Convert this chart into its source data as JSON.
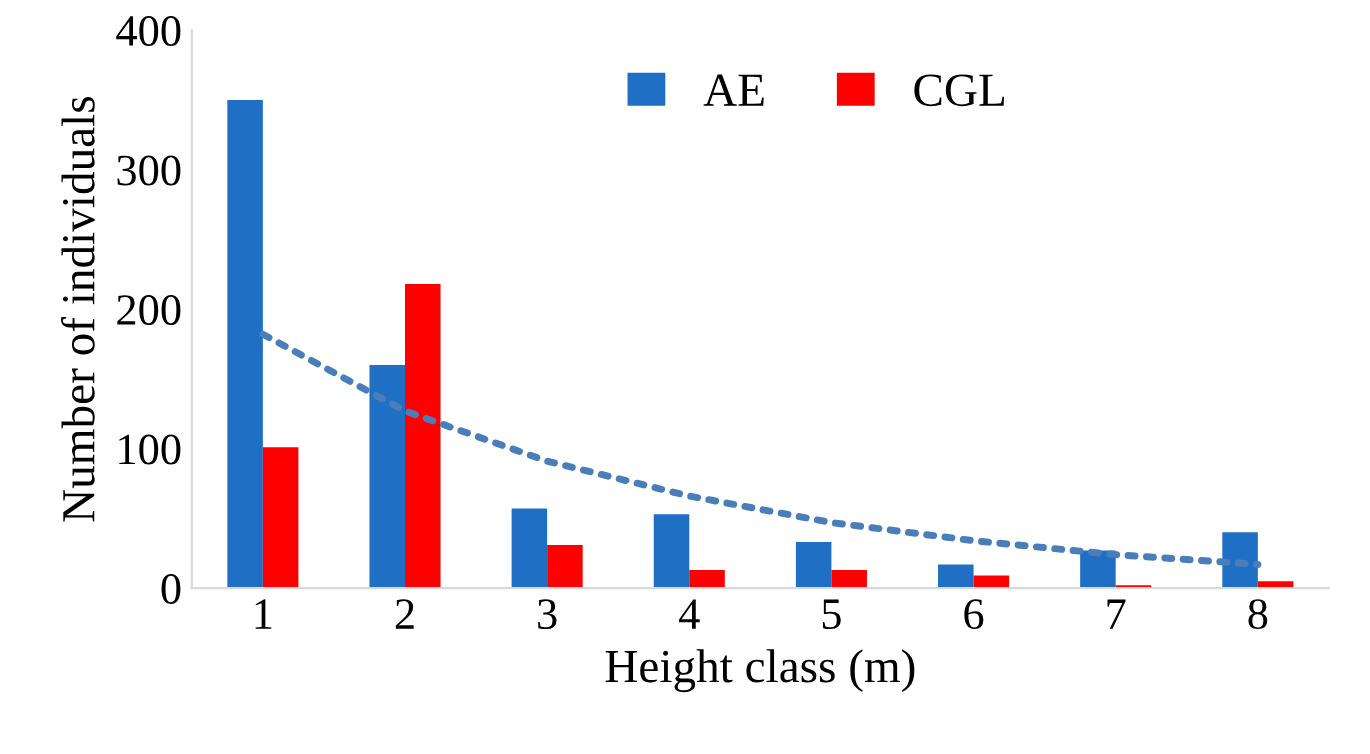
{
  "chart_data": {
    "type": "bar",
    "xlabel": "Height class (m)",
    "ylabel": "Number of individuals",
    "categories": [
      "1",
      "2",
      "3",
      "4",
      "5",
      "6",
      "7",
      "8"
    ],
    "series": [
      {
        "name": "AE",
        "color": "#1f6fc5",
        "values": [
          350,
          160,
          57,
          53,
          33,
          17,
          27,
          40
        ]
      },
      {
        "name": "CGL",
        "color": "#ff0000",
        "values": [
          101,
          218,
          31,
          13,
          13,
          9,
          2,
          5
        ]
      },
      {
        "type": "line",
        "color": "#4a7ebb",
        "line_style": "dotted",
        "x": [
          "1",
          "2",
          "3",
          "4",
          "5",
          "6",
          "7",
          "8"
        ],
        "values": [
          182,
          127,
          91,
          66,
          47,
          34,
          24,
          17
        ]
      }
    ],
    "ylim": [
      0,
      400
    ],
    "yticks": [
      0,
      100,
      200,
      300,
      400
    ],
    "grid": false,
    "legend": "top"
  }
}
